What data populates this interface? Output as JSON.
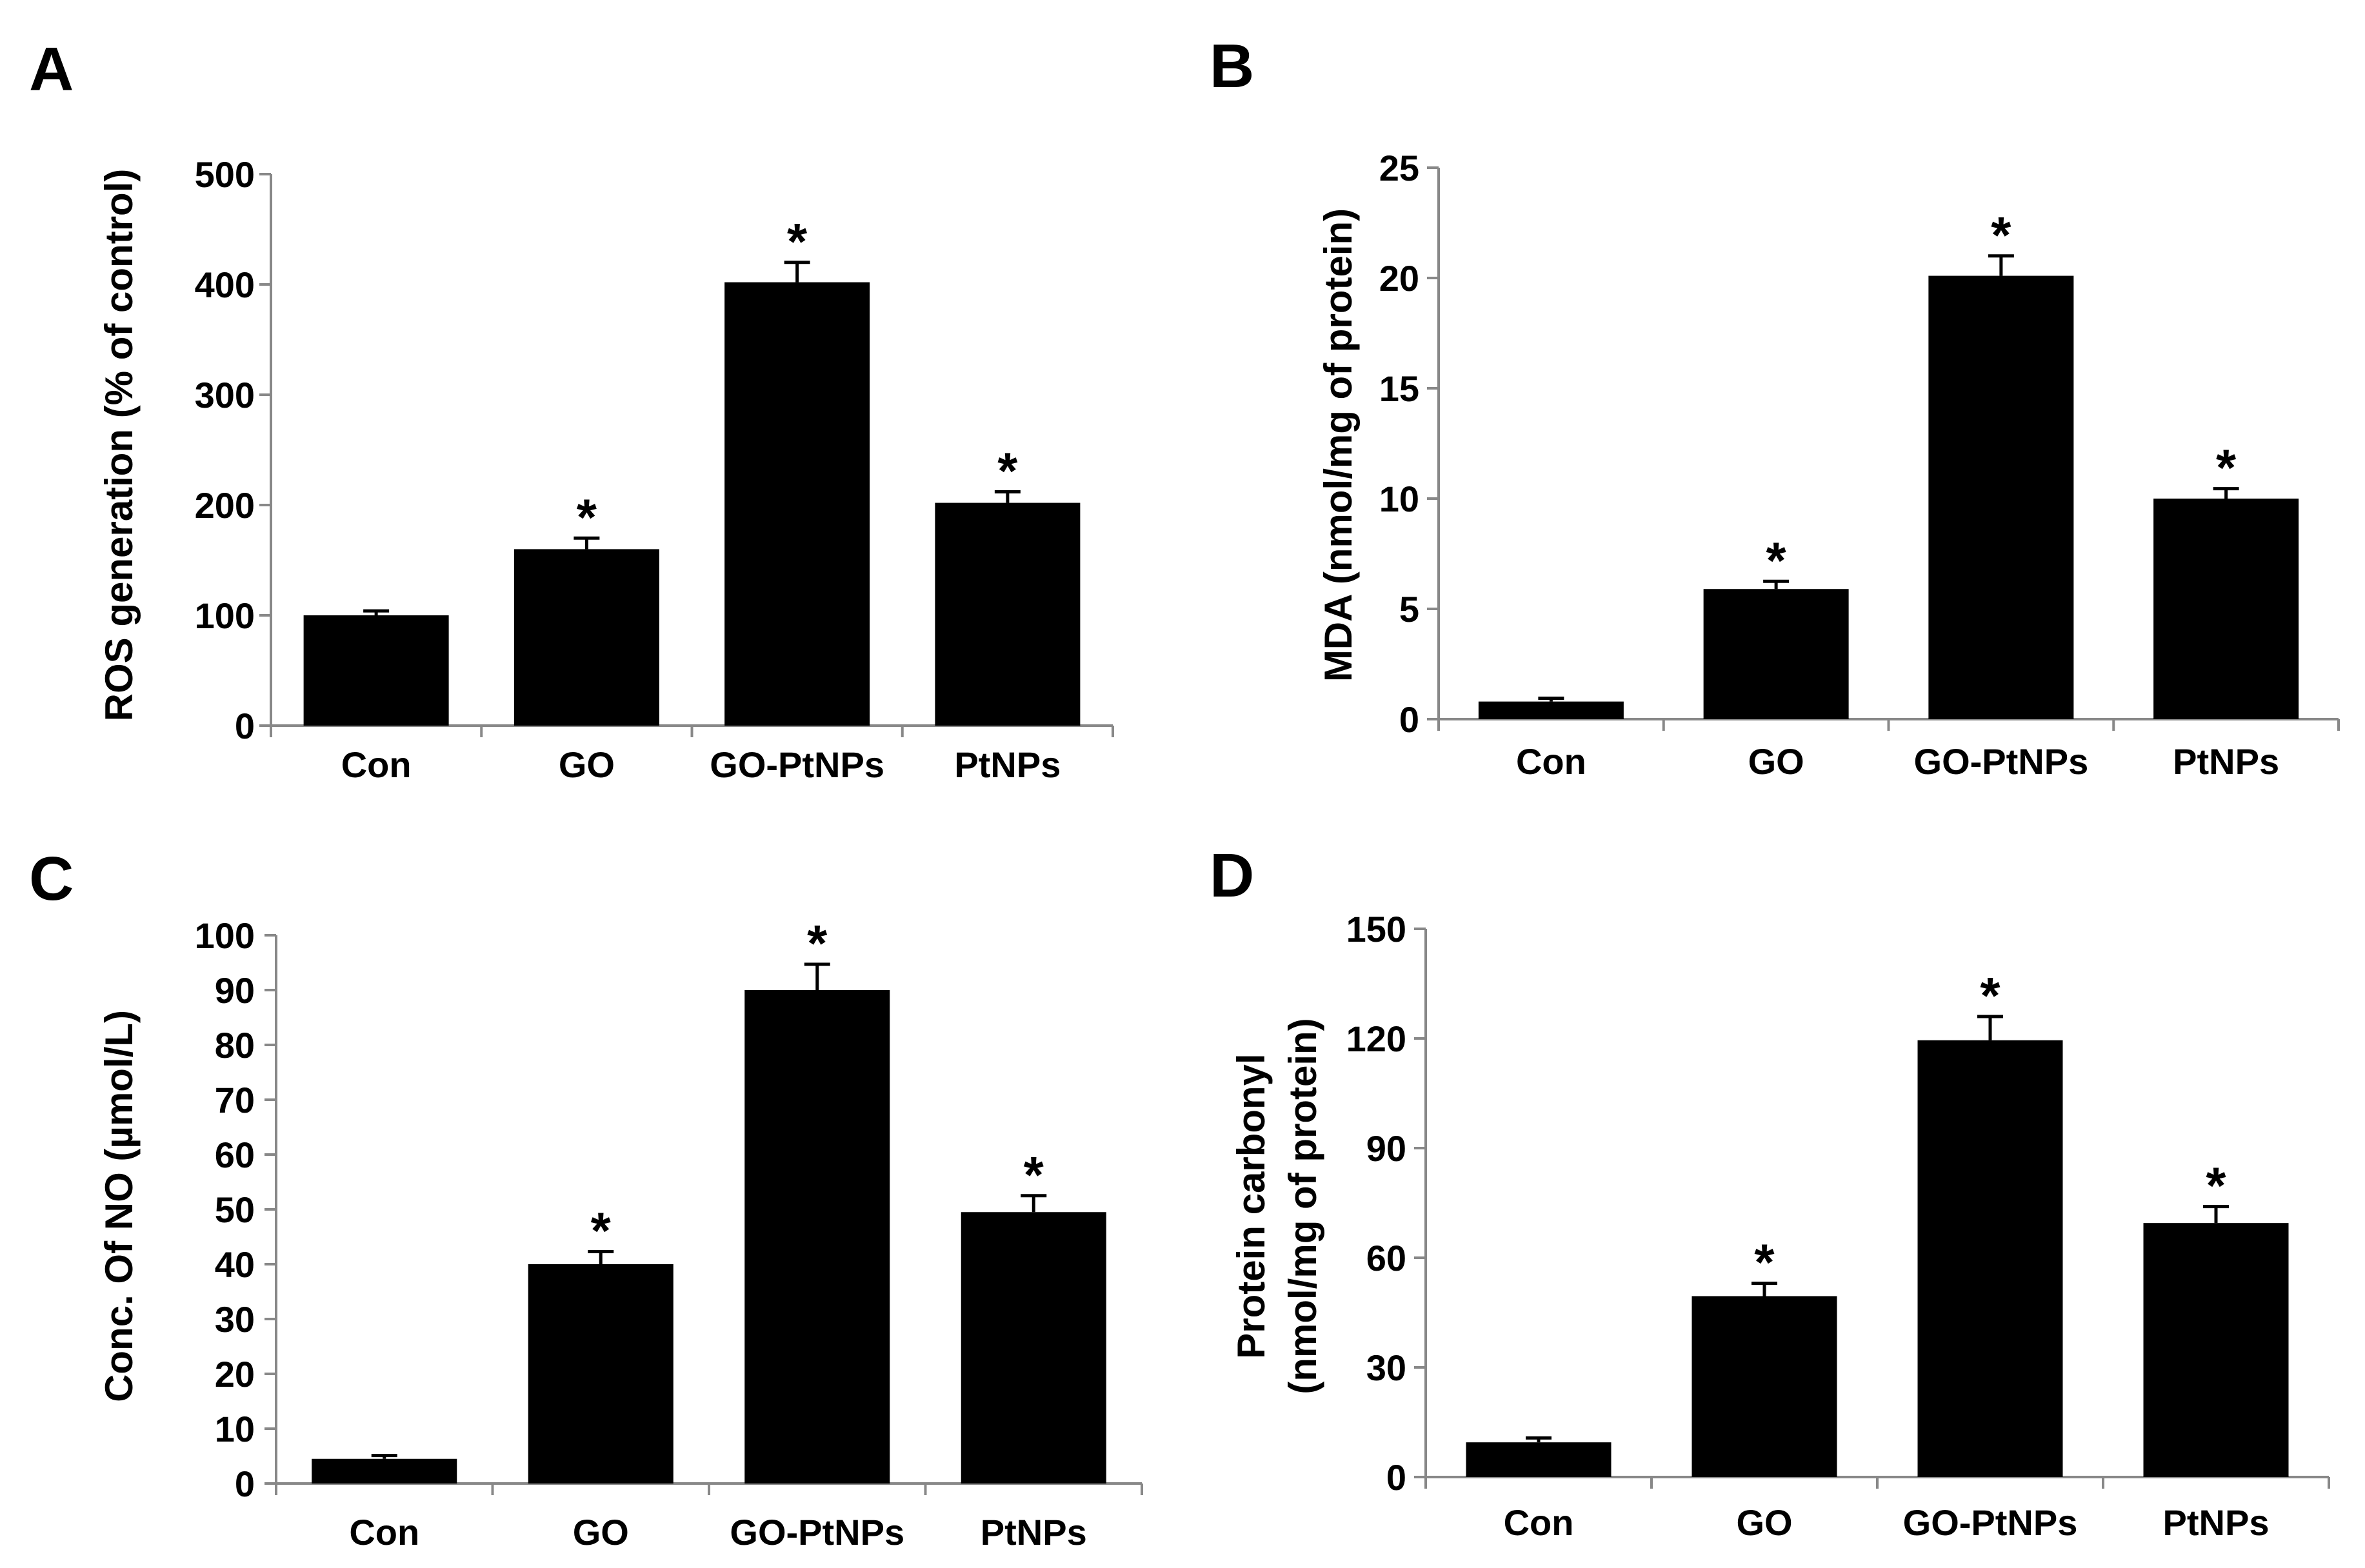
{
  "chart_data": [
    {
      "panel": "A",
      "type": "bar",
      "categories": [
        "Con",
        "GO",
        "GO-PtNPs",
        "PtNPs"
      ],
      "values": [
        100,
        160,
        402,
        202
      ],
      "errors": [
        4,
        10,
        18,
        10
      ],
      "significant": [
        false,
        true,
        true,
        true
      ],
      "star": "*",
      "ylabel": [
        "ROS generation (% of control)"
      ],
      "ylim": [
        0,
        500
      ],
      "yticks": [
        0,
        100,
        200,
        300,
        400,
        500
      ],
      "ytick_labels": [
        "0",
        "100",
        "200",
        "300",
        "400",
        "500"
      ]
    },
    {
      "panel": "B",
      "type": "bar",
      "categories": [
        "Con",
        "GO",
        "GO-PtNPs",
        "PtNPs"
      ],
      "values": [
        0.8,
        5.9,
        20.1,
        10.0
      ],
      "errors": [
        0.15,
        0.35,
        0.9,
        0.45
      ],
      "significant": [
        false,
        true,
        true,
        true
      ],
      "star": "*",
      "ylabel": [
        "MDA (nmol/mg of protein)"
      ],
      "ylim": [
        0,
        25
      ],
      "yticks": [
        0,
        5,
        10,
        15,
        20,
        25
      ],
      "ytick_labels": [
        "0",
        "5",
        "10",
        "15",
        "20",
        "25"
      ]
    },
    {
      "panel": "C",
      "type": "bar",
      "categories": [
        "Con",
        "GO",
        "GO-PtNPs",
        "PtNPs"
      ],
      "values": [
        4.5,
        40,
        90,
        49.5
      ],
      "errors": [
        0.6,
        2.3,
        4.7,
        3.0
      ],
      "significant": [
        false,
        true,
        true,
        true
      ],
      "star": "*",
      "ylabel": [
        "Conc. Of NO (µmol/L)"
      ],
      "ylim": [
        0,
        100
      ],
      "yticks": [
        0,
        10,
        20,
        30,
        40,
        50,
        60,
        70,
        80,
        90,
        100
      ],
      "ytick_labels": [
        "0",
        "10",
        "20",
        "30",
        "40",
        "50",
        "60",
        "70",
        "80",
        "90",
        "100"
      ]
    },
    {
      "panel": "D",
      "type": "bar",
      "categories": [
        "Con",
        "GO",
        "GO-PtNPs",
        "PtNPs"
      ],
      "values": [
        9.5,
        49.5,
        119.5,
        69.5
      ],
      "errors": [
        1.2,
        3.5,
        6.5,
        4.5
      ],
      "significant": [
        false,
        true,
        true,
        true
      ],
      "star": "*",
      "ylabel": [
        "Protein carbonyl",
        "(nmol/mg of protein)"
      ],
      "ylim": [
        0,
        150
      ],
      "yticks": [
        0,
        30,
        60,
        90,
        120,
        150
      ],
      "ytick_labels": [
        "0",
        "30",
        "60",
        "90",
        "120",
        "150"
      ]
    }
  ]
}
